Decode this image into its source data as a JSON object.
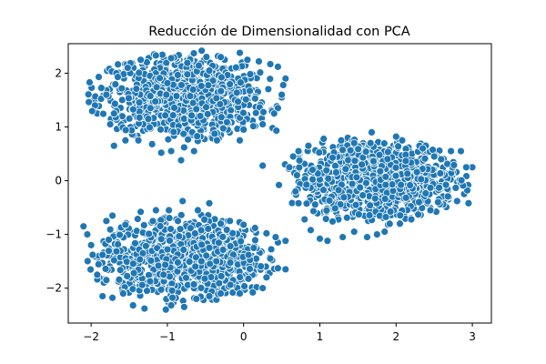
{
  "chart_data": {
    "type": "scatter",
    "title": "Reducción de Dimensionalidad con PCA",
    "xlabel": "",
    "ylabel": "",
    "xlim": [
      -2.3,
      3.25
    ],
    "ylim": [
      -2.65,
      2.55
    ],
    "x_ticks": [
      -2,
      -1,
      0,
      1,
      2,
      3
    ],
    "y_ticks": [
      -2,
      -1,
      0,
      1,
      2
    ],
    "x_tick_labels": [
      "−2",
      "−1",
      "0",
      "1",
      "2",
      "3"
    ],
    "y_tick_labels": [
      "−2",
      "−1",
      "0",
      "1",
      "2"
    ],
    "grid": false,
    "marker_color": "#1f77b4",
    "marker_edge_color": "#ffffff",
    "clusters": [
      {
        "center": [
          -0.8,
          1.55
        ],
        "spread": [
          0.55,
          0.42
        ],
        "count": 900
      },
      {
        "center": [
          1.7,
          0.0
        ],
        "spread": [
          0.55,
          0.42
        ],
        "count": 900
      },
      {
        "center": [
          -0.8,
          -1.45
        ],
        "spread": [
          0.55,
          0.42
        ],
        "count": 900
      }
    ],
    "series": [
      {
        "name": "",
        "points": [
          [
            -2.02,
            1.83
          ],
          [
            -1.9,
            1.93
          ],
          [
            -1.65,
            1.93
          ],
          [
            -1.52,
            2.1
          ],
          [
            -1.35,
            2.25
          ],
          [
            -1.15,
            2.33
          ],
          [
            -0.95,
            2.28
          ],
          [
            -0.55,
            2.42
          ],
          [
            -0.3,
            2.3
          ],
          [
            -0.05,
            2.38
          ],
          [
            0.05,
            2.25
          ],
          [
            0.2,
            2.22
          ],
          [
            0.35,
            2.17
          ],
          [
            0.45,
            2.12
          ],
          [
            0.55,
            1.9
          ],
          [
            0.52,
            1.78
          ],
          [
            0.5,
            1.55
          ],
          [
            0.45,
            1.35
          ],
          [
            0.4,
            1.25
          ],
          [
            0.38,
            0.98
          ],
          [
            0.43,
            0.93
          ],
          [
            0.25,
            1.05
          ],
          [
            0.0,
            0.95
          ],
          [
            -0.35,
            0.75
          ],
          [
            -0.05,
            0.75
          ],
          [
            -0.65,
            0.55
          ],
          [
            -0.78,
            0.62
          ],
          [
            -0.95,
            0.55
          ],
          [
            -1.08,
            0.52
          ],
          [
            -1.2,
            0.68
          ],
          [
            -1.38,
            0.75
          ],
          [
            -1.55,
            0.75
          ],
          [
            -1.7,
            0.65
          ],
          [
            -1.75,
            1.05
          ],
          [
            -1.7,
            1.25
          ],
          [
            -1.8,
            1.6
          ],
          [
            -0.82,
            0.38
          ],
          [
            0.5,
            1.6
          ],
          [
            -1.25,
            1.15
          ],
          [
            -0.45,
            2.05
          ],
          [
            0.25,
            0.28
          ],
          [
            0.6,
            0.25
          ],
          [
            0.65,
            0.45
          ],
          [
            0.72,
            0.55
          ],
          [
            0.7,
            0.1
          ],
          [
            0.68,
            -0.2
          ],
          [
            0.72,
            -0.42
          ],
          [
            0.8,
            -0.72
          ],
          [
            0.88,
            -0.92
          ],
          [
            1.0,
            -1.08
          ],
          [
            1.1,
            -1.12
          ],
          [
            1.3,
            -1.05
          ],
          [
            1.45,
            -0.95
          ],
          [
            1.62,
            -1.05
          ],
          [
            1.75,
            -1.0
          ],
          [
            1.85,
            -0.95
          ],
          [
            2.05,
            -0.8
          ],
          [
            2.2,
            -0.72
          ],
          [
            2.45,
            -0.55
          ],
          [
            2.55,
            -0.4
          ],
          [
            2.8,
            -0.38
          ],
          [
            2.95,
            -0.42
          ],
          [
            3.0,
            0.25
          ],
          [
            2.92,
            0.25
          ],
          [
            2.85,
            0.55
          ],
          [
            2.72,
            0.55
          ],
          [
            2.5,
            0.45
          ],
          [
            2.35,
            0.6
          ],
          [
            2.08,
            0.75
          ],
          [
            2.0,
            0.82
          ],
          [
            1.68,
            0.9
          ],
          [
            1.45,
            0.7
          ],
          [
            1.28,
            0.75
          ],
          [
            1.05,
            0.78
          ],
          [
            0.85,
            0.65
          ],
          [
            1.55,
            0.3
          ],
          [
            2.3,
            -0.4
          ],
          [
            -2.1,
            -0.85
          ],
          [
            -2.05,
            -1.0
          ],
          [
            -2.0,
            -1.2
          ],
          [
            -1.98,
            -1.38
          ],
          [
            -1.85,
            -1.38
          ],
          [
            -1.92,
            -1.75
          ],
          [
            -1.8,
            -1.85
          ],
          [
            -1.85,
            -2.15
          ],
          [
            -1.72,
            -2.18
          ],
          [
            -1.58,
            -2.1
          ],
          [
            -1.45,
            -2.32
          ],
          [
            -1.3,
            -2.38
          ],
          [
            -1.02,
            -2.4
          ],
          [
            -0.95,
            -2.32
          ],
          [
            -0.78,
            -2.35
          ],
          [
            -0.62,
            -2.2
          ],
          [
            -0.45,
            -2.15
          ],
          [
            -0.3,
            -2.1
          ],
          [
            -0.05,
            -2.1
          ],
          [
            0.12,
            -2.08
          ],
          [
            0.25,
            -2.0
          ],
          [
            0.3,
            -1.8
          ],
          [
            0.45,
            -1.63
          ],
          [
            0.55,
            -1.65
          ],
          [
            0.35,
            -1.45
          ],
          [
            0.45,
            -1.15
          ],
          [
            0.55,
            -1.12
          ],
          [
            0.42,
            -1.05
          ],
          [
            0.3,
            -0.98
          ],
          [
            0.15,
            -0.88
          ],
          [
            0.0,
            -0.82
          ],
          [
            -0.18,
            -0.75
          ],
          [
            -0.3,
            -0.8
          ],
          [
            -0.45,
            -0.42
          ],
          [
            -0.6,
            -0.55
          ],
          [
            -0.8,
            -0.38
          ],
          [
            -0.98,
            -0.55
          ],
          [
            -1.15,
            -0.55
          ],
          [
            -1.35,
            -0.58
          ],
          [
            -1.55,
            -0.82
          ],
          [
            -1.72,
            -0.65
          ],
          [
            -1.8,
            -0.75
          ],
          [
            -0.45,
            -1.25
          ],
          [
            -1.05,
            -1.75
          ]
        ]
      }
    ]
  }
}
